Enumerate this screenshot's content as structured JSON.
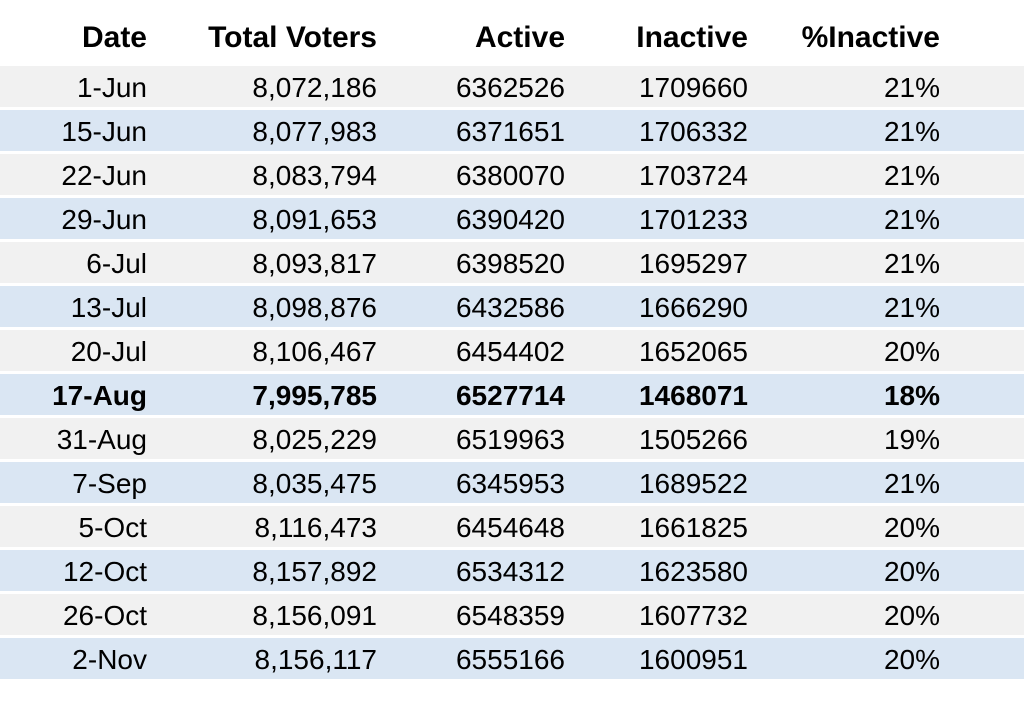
{
  "chart_data": {
    "type": "table",
    "columns": [
      "Date",
      "Total Voters",
      "Active",
      "Inactive",
      "%Inactive"
    ],
    "rows": [
      [
        "1-Jun",
        "8,072,186",
        "6362526",
        "1709660",
        "21%"
      ],
      [
        "15-Jun",
        "8,077,983",
        "6371651",
        "1706332",
        "21%"
      ],
      [
        "22-Jun",
        "8,083,794",
        "6380070",
        "1703724",
        "21%"
      ],
      [
        "29-Jun",
        "8,091,653",
        "6390420",
        "1701233",
        "21%"
      ],
      [
        "6-Jul",
        "8,093,817",
        "6398520",
        "1695297",
        "21%"
      ],
      [
        "13-Jul",
        "8,098,876",
        "6432586",
        "1666290",
        "21%"
      ],
      [
        "20-Jul",
        "8,106,467",
        "6454402",
        "1652065",
        "20%"
      ],
      [
        "17-Aug",
        "7,995,785",
        "6527714",
        "1468071",
        "18%"
      ],
      [
        "31-Aug",
        "8,025,229",
        "6519963",
        "1505266",
        "19%"
      ],
      [
        "7-Sep",
        "8,035,475",
        "6345953",
        "1689522",
        "21%"
      ],
      [
        "5-Oct",
        "8,116,473",
        "6454648",
        "1661825",
        "20%"
      ],
      [
        "12-Oct",
        "8,157,892",
        "6534312",
        "1623580",
        "20%"
      ],
      [
        "26-Oct",
        "8,156,091",
        "6548359",
        "1607732",
        "20%"
      ],
      [
        "2-Nov",
        "8,156,117",
        "6555166",
        "1600951",
        "20%"
      ]
    ],
    "bold_row_index": 7,
    "layout": {
      "banded_rows": true,
      "legend": "none",
      "grid": "off"
    },
    "colors": {
      "background": "#ffffff",
      "header_background": "#ffffff",
      "band_odd": "#f1f1f1",
      "band_even": "#dae6f3",
      "text": "#000000"
    }
  }
}
